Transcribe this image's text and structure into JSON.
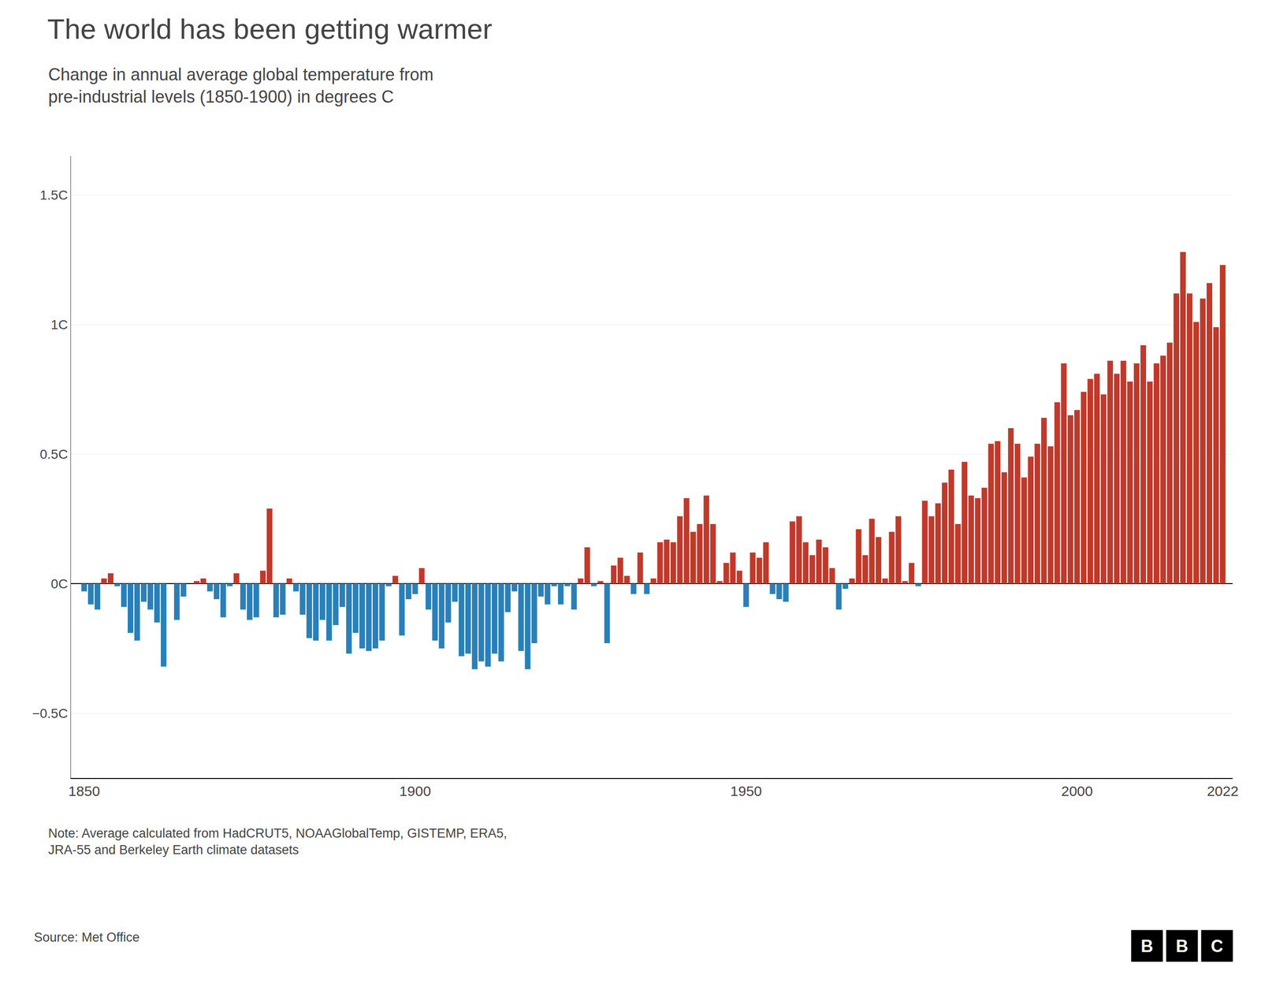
{
  "chart_data": {
    "type": "bar",
    "title": "The world has been getting warmer",
    "subtitle": "Change in annual average global temperature from\npre-industrial levels (1850-1900) in degrees C",
    "note": "Note: Average calculated from HadCRUT5, NOAAGlobalTemp, GISTEMP, ERA5,\nJRA-55 and Berkeley Earth climate datasets",
    "source": "Source: Met Office",
    "logo": "BBC",
    "x": [
      1850,
      1851,
      1852,
      1853,
      1854,
      1855,
      1856,
      1857,
      1858,
      1859,
      1860,
      1861,
      1862,
      1863,
      1864,
      1865,
      1866,
      1867,
      1868,
      1869,
      1870,
      1871,
      1872,
      1873,
      1874,
      1875,
      1876,
      1877,
      1878,
      1879,
      1880,
      1881,
      1882,
      1883,
      1884,
      1885,
      1886,
      1887,
      1888,
      1889,
      1890,
      1891,
      1892,
      1893,
      1894,
      1895,
      1896,
      1897,
      1898,
      1899,
      1900,
      1901,
      1902,
      1903,
      1904,
      1905,
      1906,
      1907,
      1908,
      1909,
      1910,
      1911,
      1912,
      1913,
      1914,
      1915,
      1916,
      1917,
      1918,
      1919,
      1920,
      1921,
      1922,
      1923,
      1924,
      1925,
      1926,
      1927,
      1928,
      1929,
      1930,
      1931,
      1932,
      1933,
      1934,
      1935,
      1936,
      1937,
      1938,
      1939,
      1940,
      1941,
      1942,
      1943,
      1944,
      1945,
      1946,
      1947,
      1948,
      1949,
      1950,
      1951,
      1952,
      1953,
      1954,
      1955,
      1956,
      1957,
      1958,
      1959,
      1960,
      1961,
      1962,
      1963,
      1964,
      1965,
      1966,
      1967,
      1968,
      1969,
      1970,
      1971,
      1972,
      1973,
      1974,
      1975,
      1976,
      1977,
      1978,
      1979,
      1980,
      1981,
      1982,
      1983,
      1984,
      1985,
      1986,
      1987,
      1988,
      1989,
      1990,
      1991,
      1992,
      1993,
      1994,
      1995,
      1996,
      1997,
      1998,
      1999,
      2000,
      2001,
      2002,
      2003,
      2004,
      2005,
      2006,
      2007,
      2008,
      2009,
      2010,
      2011,
      2012,
      2013,
      2014,
      2015,
      2016,
      2017,
      2018,
      2019,
      2020,
      2021,
      2022
    ],
    "values": [
      -0.03,
      -0.08,
      -0.1,
      0.02,
      0.04,
      -0.01,
      -0.09,
      -0.19,
      -0.22,
      -0.07,
      -0.1,
      -0.15,
      -0.32,
      0.0,
      -0.14,
      -0.05,
      0.0,
      0.01,
      0.02,
      -0.03,
      -0.06,
      -0.13,
      -0.01,
      0.04,
      -0.1,
      -0.14,
      -0.13,
      0.05,
      0.29,
      -0.13,
      -0.12,
      0.02,
      -0.03,
      -0.12,
      -0.21,
      -0.22,
      -0.14,
      -0.22,
      -0.16,
      -0.09,
      -0.27,
      -0.19,
      -0.25,
      -0.26,
      -0.25,
      -0.22,
      -0.01,
      0.03,
      -0.2,
      -0.06,
      -0.04,
      0.06,
      -0.1,
      -0.22,
      -0.25,
      -0.15,
      -0.07,
      -0.28,
      -0.27,
      -0.33,
      -0.3,
      -0.32,
      -0.27,
      -0.3,
      -0.11,
      -0.03,
      -0.26,
      -0.33,
      -0.23,
      -0.05,
      -0.08,
      -0.01,
      -0.08,
      -0.01,
      -0.1,
      0.02,
      0.14,
      -0.01,
      0.01,
      -0.23,
      0.07,
      0.1,
      0.03,
      -0.04,
      0.12,
      -0.04,
      0.02,
      0.16,
      0.17,
      0.16,
      0.26,
      0.33,
      0.2,
      0.23,
      0.34,
      0.23,
      0.01,
      0.08,
      0.12,
      0.05,
      -0.09,
      0.12,
      0.1,
      0.16,
      -0.04,
      -0.06,
      -0.07,
      0.24,
      0.26,
      0.16,
      0.11,
      0.17,
      0.14,
      0.06,
      -0.1,
      -0.02,
      0.02,
      0.21,
      0.11,
      0.25,
      0.18,
      0.02,
      0.2,
      0.26,
      0.01,
      0.08,
      -0.01,
      0.32,
      0.26,
      0.31,
      0.39,
      0.44,
      0.23,
      0.47,
      0.34,
      0.33,
      0.37,
      0.54,
      0.55,
      0.43,
      0.6,
      0.54,
      0.41,
      0.49,
      0.54,
      0.64,
      0.53,
      0.7,
      0.85,
      0.65,
      0.67,
      0.74,
      0.79,
      0.81,
      0.73,
      0.86,
      0.81,
      0.86,
      0.78,
      0.85,
      0.92,
      0.78,
      0.85,
      0.88,
      0.93,
      1.12,
      1.28,
      1.12,
      1.01,
      1.1,
      1.16,
      0.99,
      1.23
    ],
    "colors": [
      "#2980b9",
      "#2980b9",
      "#2980b9",
      "#c0392b",
      "#c0392b",
      "#2980b9",
      "#2980b9",
      "#2980b9",
      "#2980b9",
      "#2980b9",
      "#2980b9",
      "#2980b9",
      "#2980b9",
      "#c0392b",
      "#2980b9",
      "#2980b9",
      "#c0392b",
      "#c0392b",
      "#c0392b",
      "#2980b9",
      "#2980b9",
      "#2980b9",
      "#2980b9",
      "#c0392b",
      "#2980b9",
      "#2980b9",
      "#2980b9",
      "#c0392b",
      "#c0392b",
      "#2980b9",
      "#2980b9",
      "#c0392b",
      "#2980b9",
      "#2980b9",
      "#2980b9",
      "#2980b9",
      "#2980b9",
      "#2980b9",
      "#2980b9",
      "#2980b9",
      "#2980b9",
      "#2980b9",
      "#2980b9",
      "#2980b9",
      "#2980b9",
      "#2980b9",
      "#2980b9",
      "#c0392b",
      "#2980b9",
      "#2980b9",
      "#2980b9",
      "#c0392b",
      "#2980b9",
      "#2980b9",
      "#2980b9",
      "#2980b9",
      "#2980b9",
      "#2980b9",
      "#2980b9",
      "#2980b9",
      "#2980b9",
      "#2980b9",
      "#2980b9",
      "#2980b9",
      "#2980b9",
      "#2980b9",
      "#2980b9",
      "#2980b9",
      "#2980b9",
      "#2980b9",
      "#2980b9",
      "#2980b9",
      "#2980b9",
      "#2980b9",
      "#2980b9",
      "#c0392b",
      "#c0392b",
      "#2980b9",
      "#c0392b",
      "#2980b9",
      "#c0392b",
      "#c0392b",
      "#c0392b",
      "#2980b9",
      "#c0392b",
      "#2980b9",
      "#c0392b",
      "#c0392b",
      "#c0392b",
      "#c0392b",
      "#c0392b",
      "#c0392b",
      "#c0392b",
      "#c0392b",
      "#c0392b",
      "#c0392b",
      "#c0392b",
      "#c0392b",
      "#c0392b",
      "#c0392b",
      "#2980b9",
      "#c0392b",
      "#c0392b",
      "#c0392b",
      "#2980b9",
      "#2980b9",
      "#2980b9",
      "#c0392b",
      "#c0392b",
      "#c0392b",
      "#c0392b",
      "#c0392b",
      "#c0392b",
      "#c0392b",
      "#2980b9",
      "#2980b9",
      "#c0392b",
      "#c0392b",
      "#c0392b",
      "#c0392b",
      "#c0392b",
      "#c0392b",
      "#c0392b",
      "#c0392b",
      "#c0392b",
      "#c0392b",
      "#2980b9",
      "#c0392b",
      "#c0392b",
      "#c0392b",
      "#c0392b",
      "#c0392b",
      "#c0392b",
      "#c0392b",
      "#c0392b",
      "#c0392b",
      "#c0392b",
      "#c0392b",
      "#c0392b",
      "#c0392b",
      "#c0392b",
      "#c0392b",
      "#c0392b",
      "#c0392b",
      "#c0392b",
      "#c0392b",
      "#c0392b",
      "#c0392b",
      "#c0392b",
      "#c0392b",
      "#c0392b",
      "#c0392b",
      "#c0392b",
      "#c0392b",
      "#c0392b",
      "#c0392b",
      "#c0392b",
      "#c0392b",
      "#c0392b",
      "#c0392b",
      "#c0392b",
      "#c0392b",
      "#c0392b",
      "#c0392b",
      "#c0392b",
      "#c0392b",
      "#c0392b",
      "#c0392b",
      "#c0392b",
      "#c0392b",
      "#c0392b",
      "#c0392b",
      "#c0392b"
    ],
    "xlim": [
      1848,
      2023.5
    ],
    "ylim": [
      -0.75,
      1.65
    ],
    "xticks": [
      1850,
      1900,
      1950,
      2000,
      2022
    ],
    "yticks": [
      {
        "value": -0.5,
        "label": "−0.5C"
      },
      {
        "value": 0,
        "label": "0C"
      },
      {
        "value": 0.5,
        "label": "0.5C"
      },
      {
        "value": 1,
        "label": "1C"
      },
      {
        "value": 1.5,
        "label": "1.5C"
      }
    ],
    "grid": "y"
  }
}
